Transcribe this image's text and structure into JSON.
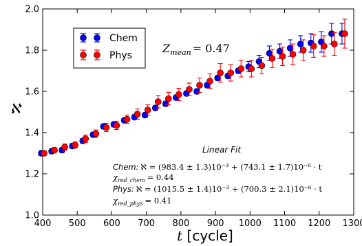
{
  "chart_data": {
    "type": "scatter",
    "xlabel_var": "t",
    "xlabel_unit": "[cycle]",
    "ylabel": "ℵ",
    "xlim": [
      400,
      1300
    ],
    "ylim": [
      1.0,
      2.0
    ],
    "x_ticks": [
      400,
      500,
      600,
      700,
      800,
      900,
      1000,
      1100,
      1200,
      1300
    ],
    "y_ticks": [
      1.0,
      1.2,
      1.4,
      1.6,
      1.8,
      2.0
    ],
    "x_tick_labels": [
      "400",
      "500",
      "600",
      "700",
      "800",
      "900",
      "1000",
      "1100",
      "1200",
      "1300"
    ],
    "y_tick_labels": [
      "1.0",
      "1.2",
      "1.4",
      "1.6",
      "1.8",
      "2.0"
    ],
    "grid": false,
    "legend_position": "top-left",
    "series": [
      {
        "name": "Chem",
        "color": "#0000ff",
        "x": [
          400,
          430,
          460,
          490,
          520,
          550,
          580,
          610,
          640,
          670,
          700,
          730,
          760,
          790,
          820,
          850,
          880,
          910,
          940,
          970,
          1000,
          1030,
          1060,
          1090,
          1120,
          1150,
          1180,
          1210,
          1240,
          1270
        ],
        "y": [
          1.3,
          1.31,
          1.315,
          1.335,
          1.36,
          1.39,
          1.43,
          1.44,
          1.46,
          1.475,
          1.485,
          1.52,
          1.54,
          1.57,
          1.59,
          1.6,
          1.63,
          1.665,
          1.675,
          1.7,
          1.72,
          1.745,
          1.785,
          1.795,
          1.81,
          1.83,
          1.835,
          1.84,
          1.88,
          1.88
        ],
        "err": [
          0.012,
          0.012,
          0.012,
          0.012,
          0.012,
          0.012,
          0.012,
          0.012,
          0.012,
          0.012,
          0.012,
          0.012,
          0.012,
          0.012,
          0.012,
          0.012,
          0.012,
          0.012,
          0.012,
          0.012,
          0.025,
          0.03,
          0.035,
          0.035,
          0.04,
          0.04,
          0.045,
          0.05,
          0.05,
          0.05
        ]
      },
      {
        "name": "Phys",
        "color": "#ff0000",
        "x": [
          400,
          430,
          460,
          490,
          520,
          550,
          580,
          610,
          640,
          670,
          700,
          730,
          760,
          790,
          820,
          850,
          880,
          910,
          940,
          970,
          1000,
          1030,
          1060,
          1090,
          1120,
          1150,
          1180,
          1210,
          1240,
          1270
        ],
        "y": [
          1.3,
          1.315,
          1.33,
          1.34,
          1.37,
          1.395,
          1.425,
          1.435,
          1.465,
          1.49,
          1.51,
          1.55,
          1.565,
          1.585,
          1.61,
          1.63,
          1.65,
          1.69,
          1.69,
          1.71,
          1.71,
          1.725,
          1.76,
          1.77,
          1.78,
          1.8,
          1.82,
          1.82,
          1.83,
          1.88
        ],
        "err": [
          0.012,
          0.012,
          0.015,
          0.015,
          0.018,
          0.018,
          0.02,
          0.02,
          0.02,
          0.025,
          0.025,
          0.03,
          0.03,
          0.03,
          0.03,
          0.035,
          0.035,
          0.045,
          0.04,
          0.04,
          0.04,
          0.04,
          0.045,
          0.045,
          0.05,
          0.05,
          0.055,
          0.05,
          0.055,
          0.07
        ]
      }
    ],
    "annotations": {
      "z_mean_label": "Z",
      "z_mean_sub": "mean",
      "z_mean_value": "= 0.47",
      "fit_title": "Linear Fit",
      "chem_name": "Chem:",
      "chem_eq": "ℵ = (983.4 ± 1.3)10⁻³ + (743.1 ± 1.7)10⁻⁶ · t",
      "chem_chi_label": "χ",
      "chem_chi_sub": "red_chem",
      "chem_chi_value": "= 0.44",
      "phys_name": "Phys:",
      "phys_eq": "ℵ = (1015.5 ± 1.4)10⁻³ + (700.3 ± 2.1)10⁻⁶ · t",
      "phys_chi_label": "χ",
      "phys_chi_sub": "red_phys",
      "phys_chi_value": "= 0.41"
    }
  }
}
